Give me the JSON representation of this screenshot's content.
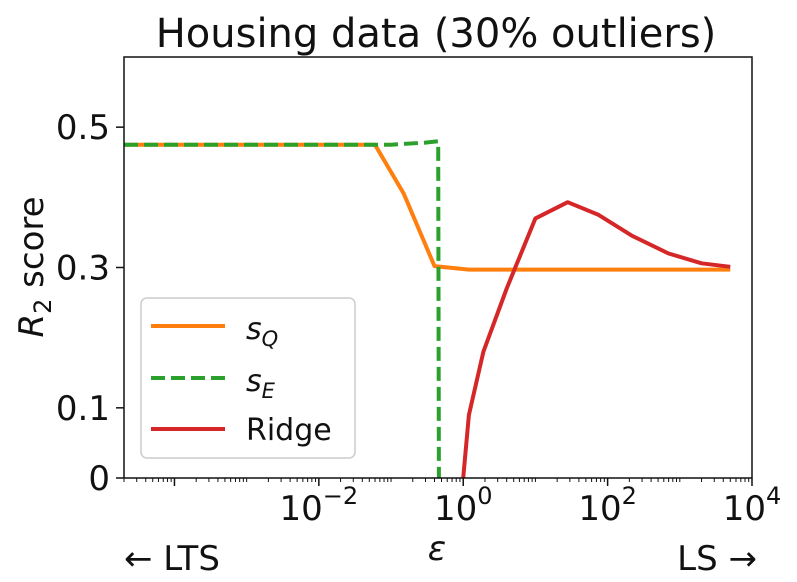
{
  "chart_data": {
    "type": "line",
    "title": "Housing data (30% outliers)",
    "xlabel": "ε",
    "ylabel_main": "R",
    "ylabel_sub": "2",
    "ylabel_rest": " score",
    "x_scale": "log",
    "xlim": [
      2e-05,
      10000
    ],
    "ylim": [
      0,
      0.6
    ],
    "x_ticks": [
      {
        "value": 0.01,
        "base": "10",
        "exp": "−2"
      },
      {
        "value": 1,
        "base": "10",
        "exp": "0"
      },
      {
        "value": 100,
        "base": "10",
        "exp": "2"
      },
      {
        "value": 10000,
        "base": "10",
        "exp": "4"
      }
    ],
    "y_ticks": [
      {
        "value": 0,
        "label": "0"
      },
      {
        "value": 0.1,
        "label": "0.1"
      },
      {
        "value": 0.3,
        "label": "0.3"
      },
      {
        "value": 0.5,
        "label": "0.5"
      }
    ],
    "left_annotation": "← LTS",
    "right_annotation": "LS →",
    "legend_position": "lower-left",
    "grid": false,
    "series": [
      {
        "name_main": "s",
        "name_sub": "Q",
        "color": "#ff7f0e",
        "style": "solid",
        "x": [
          2e-05,
          0.003,
          0.06,
          0.15,
          0.4,
          1.2,
          5,
          20,
          100,
          1000,
          5000
        ],
        "y": [
          0.475,
          0.475,
          0.475,
          0.405,
          0.302,
          0.297,
          0.297,
          0.297,
          0.297,
          0.297,
          0.297
        ]
      },
      {
        "name_main": "s",
        "name_sub": "E",
        "color": "#2ca02c",
        "style": "dashed",
        "x": [
          2e-05,
          0.01,
          0.1,
          0.3,
          0.45,
          0.45,
          0.46
        ],
        "y": [
          0.475,
          0.475,
          0.475,
          0.478,
          0.48,
          0.48,
          0
        ]
      },
      {
        "name": "Ridge",
        "color": "#d62728",
        "style": "solid",
        "x": [
          1.0,
          1.2,
          1.9,
          4,
          10,
          28,
          75,
          220,
          700,
          2000,
          5000
        ],
        "y": [
          0,
          0.09,
          0.18,
          0.27,
          0.37,
          0.393,
          0.375,
          0.345,
          0.32,
          0.306,
          0.301
        ]
      }
    ]
  }
}
